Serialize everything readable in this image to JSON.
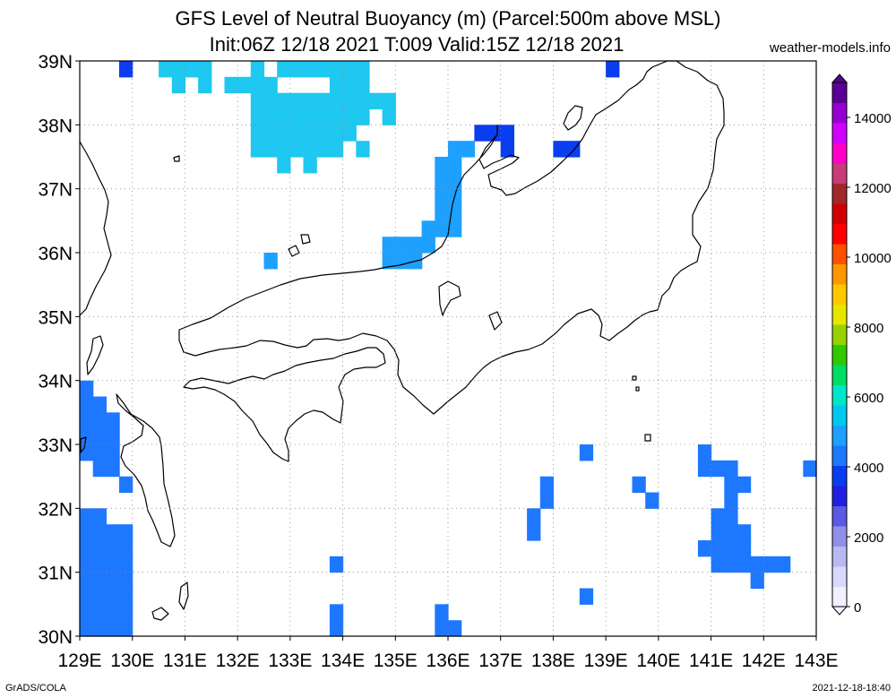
{
  "title": {
    "line1": "GFS Level of Neutral Buoyancy (m) (Parcel:500m above MSL)",
    "line2": "Init:06Z 12/18 2021 T:009 Valid:15Z 12/18 2021",
    "site": "weather-models.info"
  },
  "footer": {
    "left": "GrADS/COLA",
    "right": "2021-12-18-18:40"
  },
  "map": {
    "lon_range": [
      129,
      143
    ],
    "lat_range": [
      30,
      39
    ],
    "x_ticks": [
      "129E",
      "130E",
      "131E",
      "132E",
      "133E",
      "134E",
      "135E",
      "136E",
      "137E",
      "138E",
      "139E",
      "140E",
      "141E",
      "142E",
      "143E"
    ],
    "y_ticks": [
      "39N",
      "38N",
      "37N",
      "36N",
      "35N",
      "34N",
      "33N",
      "32N",
      "31N",
      "30N"
    ],
    "grid": "dotted",
    "colorbar": {
      "labels": [
        "14000",
        "12000",
        "10000",
        "8000",
        "6000",
        "4000",
        "2000",
        "0"
      ],
      "values": [
        14000,
        12000,
        10000,
        8000,
        6000,
        4000,
        2000,
        0
      ],
      "max": 15000,
      "colors": [
        "#f0f0ff",
        "#d8d8fa",
        "#b8b8f2",
        "#9090ea",
        "#5a5ae6",
        "#2020e0",
        "#0a3cf0",
        "#1e78ff",
        "#1ea0ff",
        "#00c8f0",
        "#00e6c8",
        "#00dc64",
        "#32c800",
        "#96d200",
        "#e6e600",
        "#ffc800",
        "#ff9600",
        "#ff5000",
        "#ff0000",
        "#d20000",
        "#a02828",
        "#c83c78",
        "#ff00c8",
        "#d200ff",
        "#9600d2",
        "#5a0096"
      ]
    }
  },
  "regions": [
    {
      "color": "#1e78ff",
      "cells": [
        [
          129.0,
          33.75
        ],
        [
          129.0,
          33.5
        ],
        [
          129.25,
          33.5
        ],
        [
          129.0,
          33.25
        ],
        [
          129.25,
          33.25
        ],
        [
          129.5,
          33.25
        ],
        [
          129.0,
          33.0
        ],
        [
          129.25,
          33.0
        ],
        [
          129.5,
          33.0
        ],
        [
          129.0,
          32.75
        ],
        [
          129.25,
          32.75
        ],
        [
          129.5,
          32.75
        ],
        [
          129.25,
          32.5
        ],
        [
          129.5,
          32.5
        ],
        [
          129.75,
          32.25
        ]
      ]
    },
    {
      "color": "#1e78ff",
      "cells": [
        [
          129.0,
          31.75
        ],
        [
          129.25,
          31.75
        ],
        [
          129.0,
          31.5
        ],
        [
          129.25,
          31.5
        ],
        [
          129.5,
          31.5
        ],
        [
          129.75,
          31.5
        ],
        [
          129.0,
          31.25
        ],
        [
          129.25,
          31.25
        ],
        [
          129.5,
          31.25
        ],
        [
          129.75,
          31.25
        ],
        [
          129.0,
          31.0
        ],
        [
          129.25,
          31.0
        ],
        [
          129.5,
          31.0
        ],
        [
          129.75,
          31.0
        ],
        [
          129.0,
          30.75
        ],
        [
          129.25,
          30.75
        ],
        [
          129.5,
          30.75
        ],
        [
          129.75,
          30.75
        ],
        [
          129.0,
          30.5
        ],
        [
          129.25,
          30.5
        ],
        [
          129.5,
          30.5
        ],
        [
          129.75,
          30.5
        ],
        [
          129.0,
          30.25
        ],
        [
          129.25,
          30.25
        ],
        [
          129.5,
          30.25
        ],
        [
          129.75,
          30.25
        ],
        [
          129.0,
          30.0
        ],
        [
          129.25,
          30.0
        ],
        [
          129.5,
          30.0
        ],
        [
          129.75,
          30.0
        ]
      ]
    },
    {
      "color": "#1e78ff",
      "cells": [
        [
          133.75,
          31.0
        ],
        [
          133.75,
          30.25
        ],
        [
          133.75,
          30.0
        ],
        [
          135.75,
          30.25
        ],
        [
          135.75,
          30.0
        ],
        [
          136.0,
          30.0
        ]
      ]
    },
    {
      "color": "#1e78ff",
      "cells": [
        [
          137.5,
          31.75
        ],
        [
          137.5,
          31.5
        ],
        [
          137.75,
          32.25
        ],
        [
          137.75,
          32.0
        ],
        [
          138.5,
          32.75
        ],
        [
          138.5,
          30.5
        ],
        [
          139.5,
          32.25
        ],
        [
          139.75,
          32.0
        ]
      ]
    },
    {
      "color": "#1e78ff",
      "cells": [
        [
          140.75,
          32.75
        ],
        [
          140.75,
          32.5
        ],
        [
          141.0,
          32.5
        ],
        [
          141.25,
          32.5
        ],
        [
          141.25,
          32.25
        ],
        [
          141.5,
          32.25
        ],
        [
          141.25,
          32.0
        ],
        [
          141.0,
          31.75
        ],
        [
          141.25,
          31.75
        ],
        [
          141.0,
          31.5
        ],
        [
          141.25,
          31.5
        ],
        [
          141.5,
          31.5
        ],
        [
          140.75,
          31.25
        ],
        [
          141.0,
          31.25
        ],
        [
          141.25,
          31.25
        ],
        [
          141.5,
          31.25
        ],
        [
          141.0,
          31.0
        ],
        [
          141.25,
          31.0
        ],
        [
          141.5,
          31.0
        ],
        [
          141.75,
          31.0
        ],
        [
          142.0,
          31.0
        ],
        [
          142.25,
          31.0
        ],
        [
          141.75,
          30.75
        ],
        [
          142.75,
          32.5
        ]
      ]
    },
    {
      "color": "#1ea0ff",
      "cells": [
        [
          134.75,
          36.0
        ],
        [
          135.0,
          36.0
        ],
        [
          135.25,
          36.0
        ],
        [
          135.5,
          36.0
        ],
        [
          134.75,
          35.75
        ],
        [
          135.0,
          35.75
        ],
        [
          135.25,
          35.75
        ],
        [
          135.5,
          36.25
        ],
        [
          135.75,
          36.25
        ],
        [
          135.75,
          36.5
        ],
        [
          135.75,
          36.75
        ],
        [
          135.75,
          37.0
        ],
        [
          136.0,
          37.0
        ],
        [
          136.0,
          36.75
        ],
        [
          136.0,
          36.5
        ],
        [
          136.0,
          36.25
        ],
        [
          136.0,
          37.25
        ],
        [
          136.0,
          37.5
        ],
        [
          135.75,
          37.25
        ],
        [
          136.25,
          37.5
        ],
        [
          132.5,
          35.75
        ]
      ]
    },
    {
      "color": "#0a3cf0",
      "cells": [
        [
          136.5,
          37.75
        ],
        [
          136.75,
          37.75
        ],
        [
          137.0,
          37.75
        ],
        [
          137.0,
          37.5
        ],
        [
          138.0,
          37.5
        ],
        [
          138.25,
          37.5
        ],
        [
          139.0,
          38.75
        ],
        [
          129.75,
          38.75
        ]
      ]
    },
    {
      "color": "#1ec8f0",
      "cells": [
        [
          130.5,
          38.75
        ],
        [
          130.75,
          38.75
        ],
        [
          131.0,
          38.75
        ],
        [
          131.25,
          38.75
        ],
        [
          130.75,
          38.5
        ],
        [
          131.25,
          38.5
        ],
        [
          131.75,
          38.5
        ],
        [
          132.0,
          38.5
        ],
        [
          132.25,
          38.75
        ],
        [
          132.25,
          38.5
        ],
        [
          132.5,
          38.5
        ],
        [
          132.75,
          38.75
        ],
        [
          133.0,
          38.75
        ],
        [
          133.25,
          38.75
        ],
        [
          133.5,
          38.75
        ],
        [
          132.25,
          38.25
        ],
        [
          132.5,
          38.25
        ],
        [
          132.75,
          38.25
        ],
        [
          133.0,
          38.25
        ],
        [
          133.25,
          38.25
        ],
        [
          133.5,
          38.25
        ],
        [
          133.75,
          38.25
        ],
        [
          134.0,
          38.25
        ],
        [
          134.25,
          38.25
        ],
        [
          134.5,
          38.25
        ],
        [
          134.75,
          38.25
        ],
        [
          133.75,
          38.5
        ],
        [
          134.0,
          38.5
        ],
        [
          134.25,
          38.5
        ],
        [
          134.0,
          38.75
        ],
        [
          134.25,
          38.75
        ],
        [
          133.75,
          38.75
        ],
        [
          132.25,
          38.0
        ],
        [
          132.5,
          38.0
        ],
        [
          132.75,
          38.0
        ],
        [
          133.0,
          38.0
        ],
        [
          133.25,
          38.0
        ],
        [
          133.5,
          38.0
        ],
        [
          133.75,
          38.0
        ],
        [
          134.0,
          38.0
        ],
        [
          134.25,
          38.0
        ],
        [
          134.75,
          38.0
        ],
        [
          132.25,
          37.75
        ],
        [
          132.5,
          37.75
        ],
        [
          132.75,
          37.75
        ],
        [
          133.0,
          37.75
        ],
        [
          133.25,
          37.75
        ],
        [
          133.5,
          37.75
        ],
        [
          133.75,
          37.75
        ],
        [
          134.0,
          37.75
        ],
        [
          132.25,
          37.5
        ],
        [
          132.5,
          37.5
        ],
        [
          132.75,
          37.5
        ],
        [
          133.0,
          37.5
        ],
        [
          133.25,
          37.5
        ],
        [
          133.5,
          37.5
        ],
        [
          133.75,
          37.5
        ],
        [
          134.25,
          37.5
        ],
        [
          132.75,
          37.25
        ],
        [
          133.25,
          37.25
        ]
      ]
    }
  ]
}
